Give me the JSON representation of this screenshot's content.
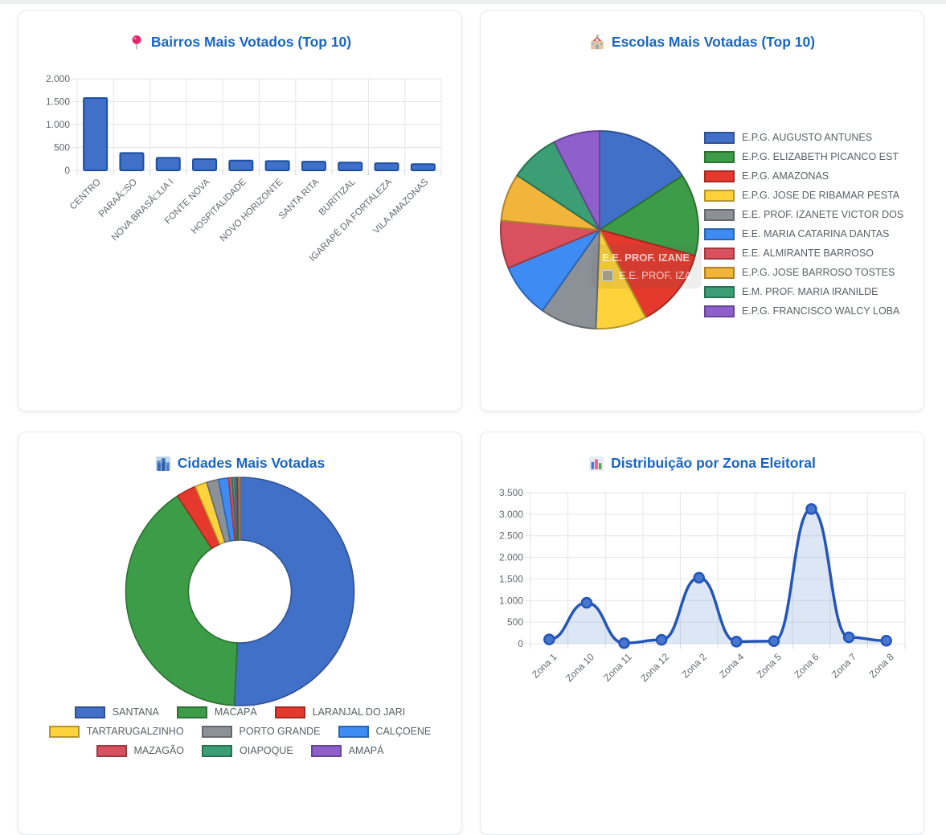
{
  "page": {
    "background": "#ffffff",
    "top_divider_color": "#eceef1",
    "title_color": "#1766c7",
    "axis_text_color": "#63686e",
    "grid_color": "#e6e6e6"
  },
  "chart_data": [
    {
      "id": "bairros",
      "type": "bar",
      "title": "Bairros Mais Votados (Top 10)",
      "icon": "round-pushpin-icon",
      "categories": [
        "CENTRO",
        "PARAÃ□SO",
        "NOVA BRASÃ□LIA I",
        "FONTE NOVA",
        "HOSPITALIDADE",
        "NOVO HORIZONTE",
        "SANTA RITA",
        "BURITIZAL",
        "IGARAPÉ DA FORTALEZA",
        "VILA AMAZONAS"
      ],
      "values": [
        1580,
        380,
        275,
        245,
        215,
        205,
        190,
        170,
        155,
        135
      ],
      "xlabel": "",
      "ylabel": "",
      "ylim": [
        0,
        2000
      ],
      "y_tick_labels": [
        "2.000",
        "1.500",
        "1.000",
        "500",
        "0"
      ],
      "grid": true,
      "legend_position": "none",
      "bar_color": "#4170C8",
      "bar_border_color": "#1B4F9E"
    },
    {
      "id": "escolas",
      "type": "pie",
      "title": "Escolas Mais Votadas (Top 10)",
      "icon": "school-icon",
      "labels": [
        "E.P.G. AUGUSTO ANTUNES",
        "E.P.G. ELIZABETH PICANCO EST",
        "E.P.G. AMAZONAS",
        "E.P.G. JOSE DE RIBAMAR PESTA",
        "E.E. PROF. IZANETE VICTOR DOS",
        "E.E. MARIA CATARINA DANTAS",
        "E.E. ALMIRANTE BARROSO",
        "E.P.G. JOSE BARROSO TOSTES",
        "E.M. PROF. MARIA IRANILDE",
        "E.P.G. FRANCISCO WALCY LOBA"
      ],
      "values": [
        15.8,
        13.4,
        13.1,
        8.3,
        9.2,
        8.9,
        7.8,
        7.8,
        8.1,
        7.6
      ],
      "colors": [
        "#4170C8",
        "#3D9C47",
        "#E4392C",
        "#FDD23A",
        "#8C9198",
        "#3E8BF4",
        "#D9515F",
        "#F2B53B",
        "#3B9E74",
        "#8F60CC"
      ],
      "legend_position": "right",
      "ghost_tooltip": [
        "E.E. PROF. IZANE",
        "E.E. PROF. IZA"
      ]
    },
    {
      "id": "cidades",
      "type": "doughnut",
      "title": "Cidades Mais Votadas",
      "icon": "cityscape-icon",
      "labels": [
        "SANTANA",
        "MACAPÁ",
        "LARANJAL DO JARI",
        "TARTARUGALZINHO",
        "PORTO GRANDE",
        "CALÇOENE",
        "MAZAGÃO",
        "OIAPOQUE",
        "AMAPÁ",
        "",
        ""
      ],
      "values": [
        50.8,
        40.0,
        2.8,
        1.7,
        1.7,
        1.4,
        0.5,
        0.4,
        0.3,
        0.2,
        0.2
      ],
      "colors": [
        "#4170C8",
        "#3D9C47",
        "#E4392C",
        "#FDD23A",
        "#8C9198",
        "#3E8BF4",
        "#D9515F",
        "#3B9E74",
        "#8F60CC",
        "#2F8A3D",
        "#F29C38"
      ],
      "legend_position": "bottom",
      "legend_rows": [
        [
          0,
          1,
          2
        ],
        [
          3,
          4,
          5
        ],
        [
          6,
          7,
          8
        ]
      ]
    },
    {
      "id": "zonas",
      "type": "line",
      "title": "Distribuição por Zona Eleitoral",
      "icon": "bar-chart-icon",
      "categories": [
        "Zona 1",
        "Zona 10",
        "Zona 11",
        "Zona 12",
        "Zona 2",
        "Zona 4",
        "Zona 5",
        "Zona 6",
        "Zona 7",
        "Zona 8"
      ],
      "values": [
        100,
        950,
        15,
        90,
        1530,
        50,
        60,
        3120,
        150,
        70
      ],
      "xlabel": "",
      "ylabel": "",
      "ylim": [
        0,
        3500
      ],
      "y_tick_labels": [
        "3.500",
        "3.000",
        "2.500",
        "2.000",
        "1.500",
        "1.000",
        "500",
        "0"
      ],
      "grid": true,
      "legend_position": "none",
      "line_color": "#2456B8",
      "point_fill": "#4777CE",
      "area_fill": "rgba(68,114,196,0.18)"
    }
  ]
}
